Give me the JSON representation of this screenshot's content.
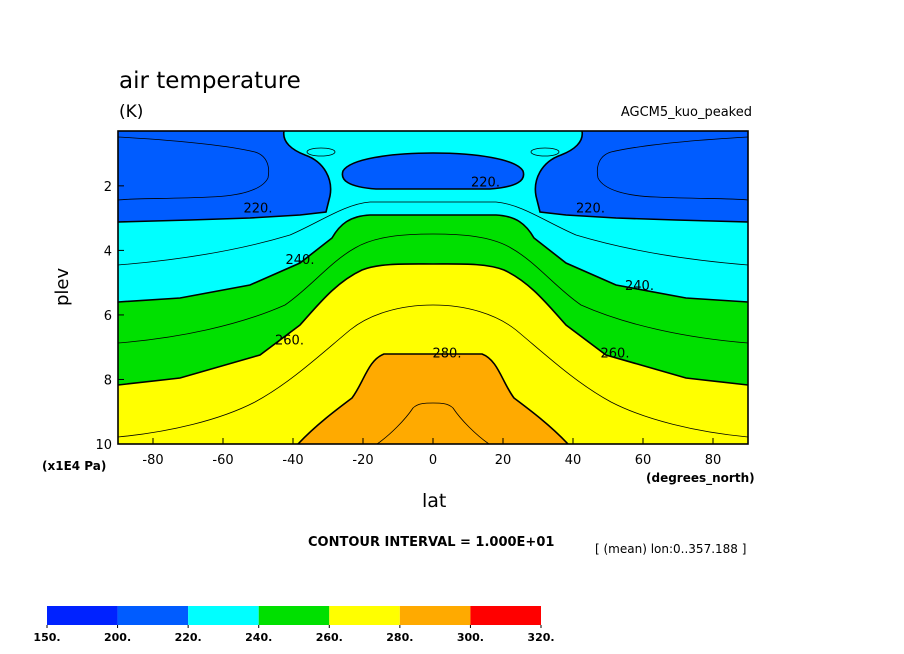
{
  "figure": {
    "title": "air temperature",
    "units": "(K)",
    "run_label": "AGCM5_kuo_peaked",
    "y_unit": "(x1E4 Pa)",
    "x_unit": "(degrees_north)",
    "contour_interval": "CONTOUR INTERVAL = 1.000E+01",
    "mean_note": "[ (mean) lon:0..357.188 ]"
  },
  "colors": {
    "c150": "#0022ff",
    "c200": "#005cff",
    "c220": "#00ffff",
    "c240": "#00e000",
    "c260": "#ffff00",
    "c280": "#ffaa00",
    "c300": "#ff0000"
  },
  "chart_data": {
    "type": "heatmap",
    "variant": "filled contour (latitude-pressure cross section)",
    "title": "air temperature",
    "units": "K",
    "xlabel": "lat",
    "ylabel": "plev",
    "x_unit_label": "(degrees_north)",
    "y_unit_label": "(x1E4 Pa)",
    "xlim": [
      -90,
      90
    ],
    "ylim": [
      0.3,
      10
    ],
    "y_inverted": true,
    "xticks": [
      -80,
      -60,
      -40,
      -20,
      0,
      20,
      40,
      60,
      80
    ],
    "yticks": [
      2,
      4,
      6,
      8,
      10
    ],
    "contour_interval": 10,
    "isotherms_labeled": [
      {
        "value": 220,
        "label": "220.",
        "x": -50,
        "y": 2.7
      },
      {
        "value": 220,
        "label": "220.",
        "x": 15,
        "y": 1.9
      },
      {
        "value": 220,
        "label": "220.",
        "x": 45,
        "y": 2.7
      },
      {
        "value": 240,
        "label": "240.",
        "x": -38,
        "y": 4.3
      },
      {
        "value": 240,
        "label": "240.",
        "x": 59,
        "y": 5.1
      },
      {
        "value": 260,
        "label": "260.",
        "x": -41,
        "y": 6.8
      },
      {
        "value": 260,
        "label": "260.",
        "x": 52,
        "y": 7.2
      },
      {
        "value": 280,
        "label": "280.",
        "x": 4,
        "y": 7.2
      }
    ],
    "colorbar": {
      "boundaries": [
        "150.",
        "200.",
        "220.",
        "240.",
        "260.",
        "280.",
        "300.",
        "320."
      ],
      "colors": [
        "#0022ff",
        "#005cff",
        "#00ffff",
        "#00e000",
        "#ffff00",
        "#ffaa00",
        "#ff0000"
      ]
    }
  }
}
